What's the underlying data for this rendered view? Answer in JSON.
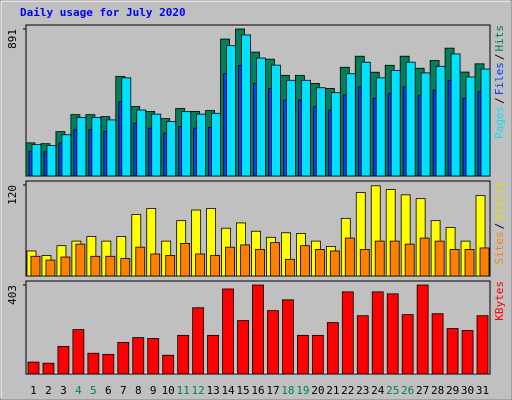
{
  "chart_data": [
    {
      "type": "bar",
      "title": "Daily usage for July 2020",
      "ylim": [
        0,
        891
      ],
      "yticks": [
        891
      ],
      "legend_separator": "/",
      "series": [
        {
          "name": "Hits",
          "color": "#00805c",
          "values": [
            201,
            196,
            269,
            372,
            372,
            360,
            604,
            421,
            391,
            348,
            409,
            391,
            397,
            830,
            891,
            751,
            708,
            610,
            610,
            561,
            531,
            659,
            726,
            629,
            671,
            726,
            653,
            700,
            775,
            630,
            680
          ]
        },
        {
          "name": "Files",
          "color": "#0040ff",
          "values": [
            150,
            146,
            200,
            280,
            280,
            270,
            450,
            320,
            290,
            260,
            300,
            290,
            295,
            620,
            670,
            560,
            530,
            460,
            460,
            420,
            400,
            490,
            540,
            470,
            500,
            540,
            490,
            520,
            580,
            470,
            510
          ]
        },
        {
          "name": "Pages",
          "color": "#00e0ff",
          "values": [
            190,
            185,
            250,
            355,
            355,
            340,
            595,
            400,
            375,
            330,
            390,
            375,
            380,
            790,
            855,
            715,
            672,
            580,
            580,
            535,
            505,
            620,
            690,
            595,
            640,
            690,
            625,
            665,
            740,
            600,
            648
          ]
        }
      ]
    },
    {
      "type": "bar",
      "ylim": [
        0,
        120
      ],
      "yticks": [
        120
      ],
      "legend_separator": "/",
      "series": [
        {
          "name": "Visits",
          "color": "#ffff00",
          "values": [
            33,
            27,
            40,
            46,
            52,
            46,
            52,
            81,
            89,
            46,
            73,
            87,
            89,
            63,
            70,
            59,
            51,
            57,
            56,
            46,
            39,
            76,
            110,
            119,
            114,
            107,
            102,
            73,
            64,
            46,
            106
          ]
        },
        {
          "name": "Sites",
          "color": "#ff8000",
          "values": [
            26,
            21,
            25,
            42,
            26,
            26,
            23,
            38,
            29,
            27,
            43,
            29,
            27,
            38,
            41,
            35,
            44,
            22,
            40,
            35,
            33,
            50,
            35,
            46,
            46,
            42,
            50,
            46,
            35,
            35,
            37
          ]
        }
      ]
    },
    {
      "type": "bar",
      "ylim": [
        0,
        403
      ],
      "yticks": [
        403
      ],
      "categories": [
        "1",
        "2",
        "3",
        "4",
        "5",
        "6",
        "7",
        "8",
        "9",
        "10",
        "11",
        "12",
        "13",
        "14",
        "15",
        "16",
        "17",
        "18",
        "19",
        "20",
        "21",
        "22",
        "23",
        "24",
        "25",
        "26",
        "27",
        "28",
        "29",
        "30",
        "31"
      ],
      "category_colors": [
        "#000000",
        "#000000",
        "#000000",
        "#00805c",
        "#00805c",
        "#000000",
        "#000000",
        "#000000",
        "#000000",
        "#000000",
        "#00805c",
        "#00805c",
        "#000000",
        "#000000",
        "#000000",
        "#000000",
        "#000000",
        "#00805c",
        "#00805c",
        "#000000",
        "#000000",
        "#000000",
        "#000000",
        "#000000",
        "#00805c",
        "#00805c",
        "#000000",
        "#000000",
        "#000000",
        "#000000",
        "#000000"
      ],
      "series": [
        {
          "name": "KBytes",
          "color": "#ff0000",
          "values": [
            54,
            49,
            125,
            201,
            94,
            89,
            143,
            165,
            161,
            85,
            175,
            300,
            175,
            385,
            242,
            403,
            287,
            336,
            175,
            175,
            233,
            372,
            264,
            372,
            363,
            269,
            403,
            273,
            206,
            197,
            264
          ]
        }
      ]
    }
  ]
}
